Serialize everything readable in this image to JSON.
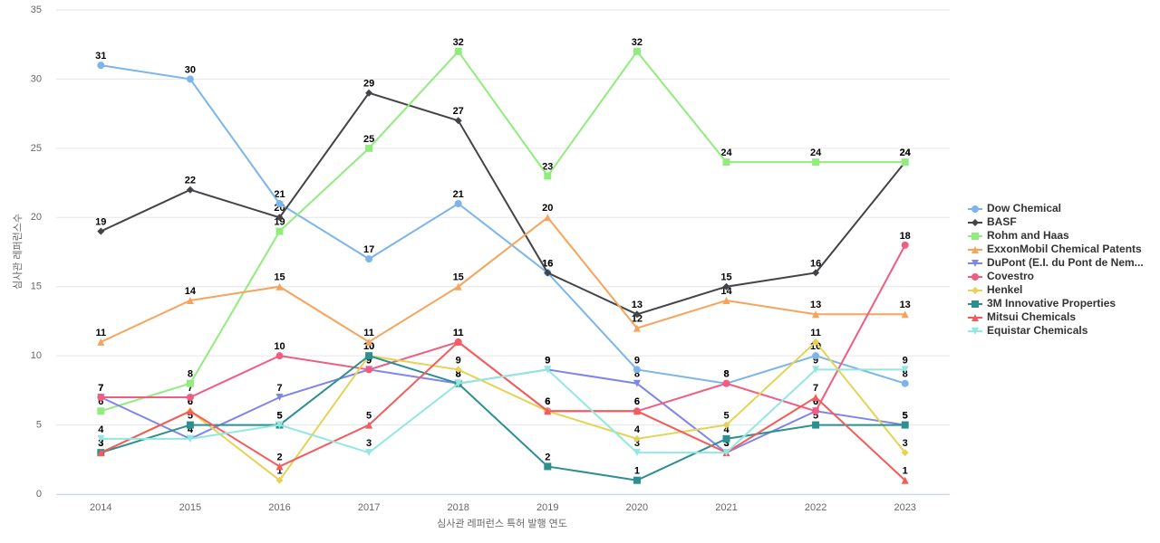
{
  "chart_data": {
    "type": "line",
    "x_label": "심사관 레퍼런스 특허 발행 연도",
    "y_label": "심사관 레퍼런스수",
    "categories": [
      "2014",
      "2015",
      "2016",
      "2017",
      "2018",
      "2019",
      "2020",
      "2021",
      "2022",
      "2023"
    ],
    "ylim": [
      0,
      35
    ],
    "yticks": [
      0,
      5,
      10,
      15,
      20,
      25,
      30,
      35
    ],
    "grid": true,
    "legend": "right",
    "series": [
      {
        "name": "Dow Chemical",
        "color": "#7cb5ec",
        "marker": "circle",
        "values": [
          31,
          30,
          21,
          17,
          21,
          16,
          9,
          8,
          10,
          8
        ]
      },
      {
        "name": "BASF",
        "color": "#434348",
        "marker": "diamond",
        "values": [
          19,
          22,
          20,
          29,
          27,
          16,
          13,
          15,
          16,
          24
        ]
      },
      {
        "name": "Rohm and Haas",
        "color": "#90ed7d",
        "marker": "square",
        "values": [
          6,
          8,
          19,
          25,
          32,
          23,
          32,
          24,
          24,
          24
        ]
      },
      {
        "name": "ExxonMobil Chemical Patents",
        "color": "#f7a35c",
        "marker": "triangle",
        "values": [
          11,
          14,
          15,
          11,
          15,
          20,
          12,
          14,
          13,
          13
        ]
      },
      {
        "name": "DuPont (E.I. du Pont de Nem...",
        "color": "#8085e9",
        "marker": "triangle-down",
        "values": [
          7,
          4,
          7,
          9,
          8,
          9,
          8,
          3,
          6,
          5
        ]
      },
      {
        "name": "Covestro",
        "color": "#f15c80",
        "marker": "circle",
        "values": [
          7,
          7,
          10,
          9,
          11,
          6,
          6,
          8,
          6,
          18
        ]
      },
      {
        "name": "Henkel",
        "color": "#e4d354",
        "marker": "diamond",
        "values": [
          3,
          6,
          1,
          10,
          9,
          6,
          4,
          5,
          11,
          3
        ]
      },
      {
        "name": "3M Innovative Properties",
        "color": "#2b908f",
        "marker": "square",
        "values": [
          3,
          5,
          5,
          10,
          8,
          2,
          1,
          4,
          5,
          5
        ]
      },
      {
        "name": "Mitsui Chemicals",
        "color": "#f45b5b",
        "marker": "triangle",
        "values": [
          3,
          6,
          2,
          5,
          11,
          6,
          6,
          3,
          7,
          1
        ]
      },
      {
        "name": "Equistar Chemicals",
        "color": "#91e8e1",
        "marker": "triangle-down",
        "values": [
          4,
          4,
          5,
          3,
          8,
          9,
          3,
          3,
          9,
          9
        ]
      }
    ]
  }
}
